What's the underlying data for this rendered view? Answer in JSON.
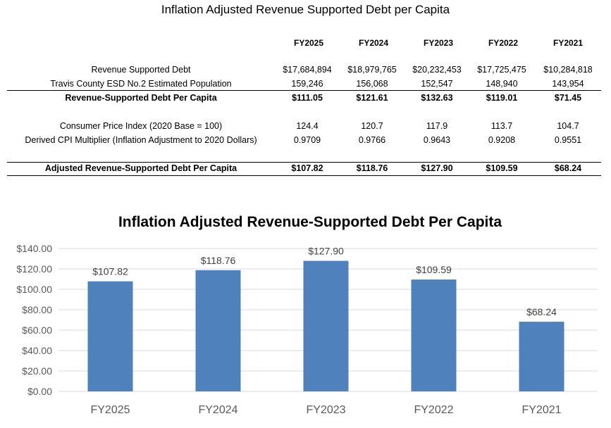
{
  "table": {
    "title": "Inflation Adjusted Revenue Supported Debt per Capita",
    "columns": [
      "FY2025",
      "FY2024",
      "FY2023",
      "FY2022",
      "FY2021"
    ],
    "rows": [
      {
        "label": "Revenue Supported Debt",
        "values": [
          "$17,684,894",
          "$18,979,765",
          "$20,232,453",
          "$17,725,475",
          "$10,284,818"
        ]
      },
      {
        "label": "Travis County ESD No.2 Estimated Population",
        "values": [
          "159,246",
          "156,068",
          "152,547",
          "148,940",
          "143,954"
        ]
      },
      {
        "label": "Revenue-Supported Debt Per Capita",
        "values": [
          "$111.05",
          "$121.61",
          "$132.63",
          "$119.01",
          "$71.45"
        ]
      },
      {
        "label": "Consumer Price Index (2020 Base = 100)",
        "values": [
          "124.4",
          "120.7",
          "117.9",
          "113.7",
          "104.7"
        ]
      },
      {
        "label": "Derived CPI Multiplier (Inflation Adjustment to 2020 Dollars)",
        "values": [
          "0.9709",
          "0.9766",
          "0.9643",
          "0.9208",
          "0.9551"
        ]
      },
      {
        "label": "Adjusted Revenue-Supported Debt Per Capita",
        "values": [
          "$107.82",
          "$118.76",
          "$127.90",
          "$109.59",
          "$68.24"
        ]
      }
    ]
  },
  "chart_data": {
    "type": "bar",
    "title": "Inflation Adjusted Revenue-Supported Debt Per Capita",
    "categories": [
      "FY2025",
      "FY2024",
      "FY2023",
      "FY2022",
      "FY2021"
    ],
    "values": [
      107.82,
      118.76,
      127.9,
      109.59,
      68.24
    ],
    "data_labels": [
      "$107.82",
      "$118.76",
      "$127.90",
      "$109.59",
      "$68.24"
    ],
    "xlabel": "",
    "ylabel": "",
    "ylim": [
      0,
      140
    ],
    "yticks": [
      0,
      20,
      40,
      60,
      80,
      100,
      120,
      140
    ],
    "ytick_labels": [
      "$0.00",
      "$20.00",
      "$40.00",
      "$60.00",
      "$80.00",
      "$100.00",
      "$120.00",
      "$140.00"
    ],
    "grid": true,
    "legend": "none",
    "bar_color": "#4F81BD",
    "grid_color": "#D9D9D9"
  }
}
